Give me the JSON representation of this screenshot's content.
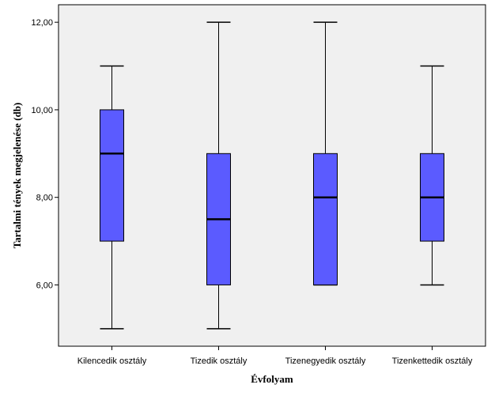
{
  "chart_data": {
    "type": "boxplot",
    "title": "",
    "xlabel": "Évfolyam",
    "ylabel": "Tartalmi tények megjelenése (db)",
    "ylim": [
      4.6,
      12.4
    ],
    "yticks": [
      6,
      8,
      10,
      12
    ],
    "ytick_labels": [
      "6,00",
      "8,00",
      "10,00",
      "12,00"
    ],
    "grid": false,
    "box_color": "#5b5bff",
    "plot_bg": "#f0f0f0",
    "categories": [
      "Kilencedik osztály",
      "Tizedik osztály",
      "Tizenegyedik osztály",
      "Tizenkettedik osztály"
    ],
    "boxes": [
      {
        "min": 5,
        "q1": 7,
        "median": 9,
        "q3": 10,
        "max": 11
      },
      {
        "min": 5,
        "q1": 6,
        "median": 7.5,
        "q3": 9,
        "max": 12
      },
      {
        "min": 6,
        "q1": 6,
        "median": 8,
        "q3": 9,
        "max": 12
      },
      {
        "min": 6,
        "q1": 7,
        "median": 8,
        "q3": 9,
        "max": 11
      }
    ]
  }
}
